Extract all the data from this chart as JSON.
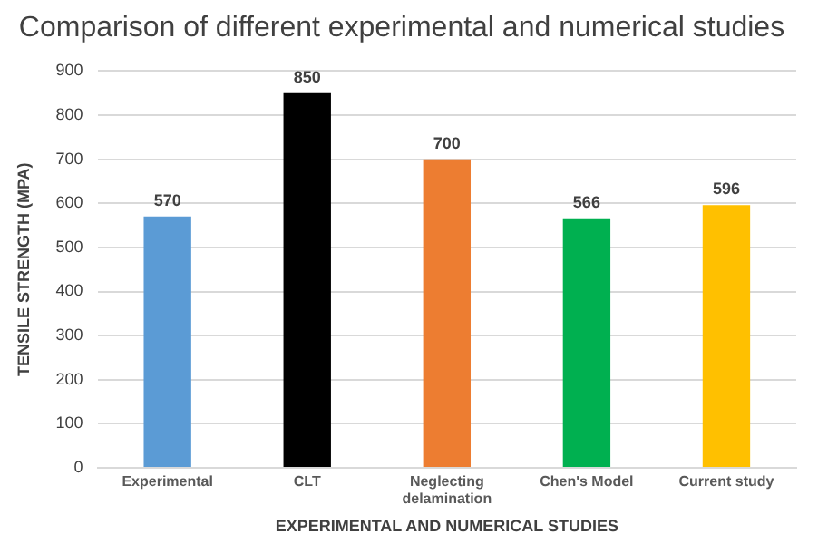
{
  "chart_data": {
    "type": "bar",
    "title": "Comparison of different experimental and numerical studies",
    "xlabel": "EXPERIMENTAL AND NUMERICAL STUDIES",
    "ylabel": "TENSILE STRENGTH (MPA)",
    "categories": [
      "Experimental",
      "CLT",
      "Neglecting delamination",
      "Chen's Model",
      "Current study"
    ],
    "values": [
      570,
      850,
      700,
      566,
      596
    ],
    "colors": [
      "#5b9bd5",
      "#000000",
      "#ed7d31",
      "#00b050",
      "#ffc000"
    ],
    "ylim": [
      0,
      900
    ],
    "yticks": [
      0,
      100,
      200,
      300,
      400,
      500,
      600,
      700,
      800,
      900
    ],
    "grid": "y",
    "data_labels": true,
    "legend": false
  }
}
